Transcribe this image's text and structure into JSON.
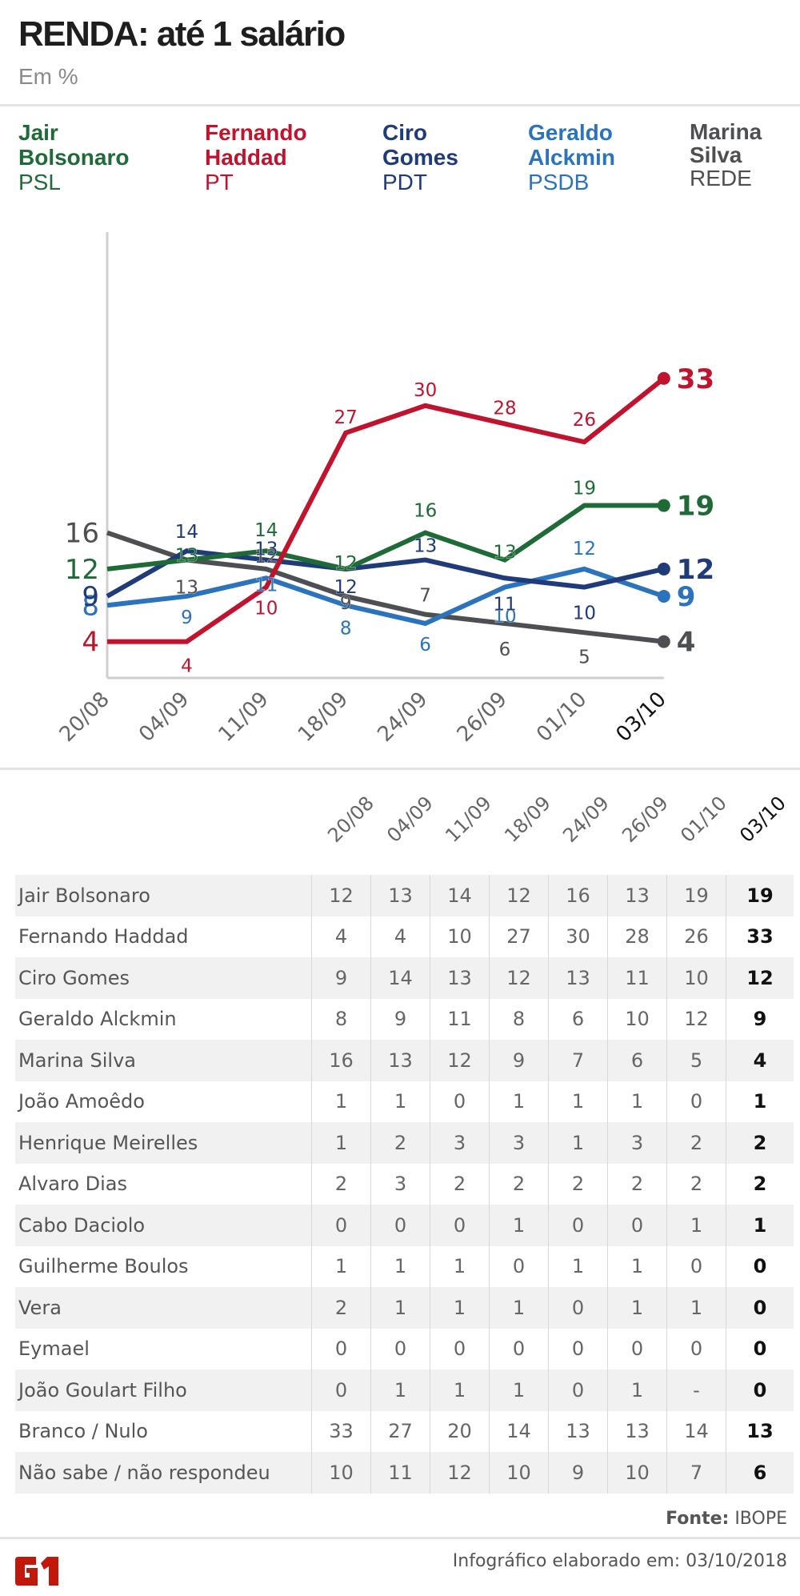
{
  "header": {
    "title": "RENDA: até 1 salário",
    "subtitle": "Em %"
  },
  "legend": [
    {
      "name": "Jair\nBolsonaro",
      "party": "PSL",
      "color": "#1e6b37"
    },
    {
      "name": "Fernando\nHaddad",
      "party": "PT",
      "color": "#c0132d"
    },
    {
      "name": "Ciro\nGomes",
      "party": "PDT",
      "color": "#203b7a"
    },
    {
      "name": "Geraldo\nAlckmin",
      "party": "PSDB",
      "color": "#2b73bd"
    },
    {
      "name": "Marina\nSilva",
      "party": "REDE",
      "color": "#4d4f52"
    }
  ],
  "chart_data": {
    "type": "line",
    "title": "RENDA: até 1 salário",
    "subtitle": "Em %",
    "xlabel": "",
    "ylabel": "",
    "ylim": [
      0,
      34
    ],
    "grid": false,
    "legend_position": "top",
    "x": [
      "20/08",
      "04/09",
      "11/09",
      "18/09",
      "24/09",
      "26/09",
      "01/10",
      "03/10"
    ],
    "series": [
      {
        "name": "Jair Bolsonaro",
        "party": "PSL",
        "color": "#1e6b37",
        "values": [
          12,
          13,
          14,
          12,
          16,
          13,
          19,
          19
        ]
      },
      {
        "name": "Fernando Haddad",
        "party": "PT",
        "color": "#c0132d",
        "values": [
          4,
          4,
          10,
          27,
          30,
          28,
          26,
          33
        ]
      },
      {
        "name": "Ciro Gomes",
        "party": "PDT",
        "color": "#203b7a",
        "values": [
          9,
          14,
          13,
          12,
          13,
          11,
          10,
          12
        ]
      },
      {
        "name": "Geraldo Alckmin",
        "party": "PSDB",
        "color": "#2b73bd",
        "values": [
          8,
          9,
          11,
          8,
          6,
          10,
          12,
          9
        ]
      },
      {
        "name": "Marina Silva",
        "party": "REDE",
        "color": "#4d4f52",
        "values": [
          16,
          13,
          12,
          9,
          7,
          6,
          5,
          4
        ]
      }
    ]
  },
  "table": {
    "columns": [
      "20/08",
      "04/09",
      "11/09",
      "18/09",
      "24/09",
      "26/09",
      "01/10",
      "03/10"
    ],
    "rows": [
      {
        "name": "Jair Bolsonaro",
        "values": [
          "12",
          "13",
          "14",
          "12",
          "16",
          "13",
          "19",
          "19"
        ]
      },
      {
        "name": "Fernando Haddad",
        "values": [
          "4",
          "4",
          "10",
          "27",
          "30",
          "28",
          "26",
          "33"
        ]
      },
      {
        "name": "Ciro Gomes",
        "values": [
          "9",
          "14",
          "13",
          "12",
          "13",
          "11",
          "10",
          "12"
        ]
      },
      {
        "name": "Geraldo Alckmin",
        "values": [
          "8",
          "9",
          "11",
          "8",
          "6",
          "10",
          "12",
          "9"
        ]
      },
      {
        "name": "Marina Silva",
        "values": [
          "16",
          "13",
          "12",
          "9",
          "7",
          "6",
          "5",
          "4"
        ]
      },
      {
        "name": "João Amoêdo",
        "values": [
          "1",
          "1",
          "0",
          "1",
          "1",
          "1",
          "0",
          "1"
        ]
      },
      {
        "name": "Henrique Meirelles",
        "values": [
          "1",
          "2",
          "3",
          "3",
          "1",
          "3",
          "2",
          "2"
        ]
      },
      {
        "name": "Alvaro Dias",
        "values": [
          "2",
          "3",
          "2",
          "2",
          "2",
          "2",
          "2",
          "2"
        ]
      },
      {
        "name": "Cabo Daciolo",
        "values": [
          "0",
          "0",
          "0",
          "1",
          "0",
          "0",
          "1",
          "1"
        ]
      },
      {
        "name": "Guilherme Boulos",
        "values": [
          "1",
          "1",
          "1",
          "0",
          "1",
          "1",
          "0",
          "0"
        ]
      },
      {
        "name": "Vera",
        "values": [
          "2",
          "1",
          "1",
          "1",
          "0",
          "1",
          "1",
          "0"
        ]
      },
      {
        "name": "Eymael",
        "values": [
          "0",
          "0",
          "0",
          "0",
          "0",
          "0",
          "0",
          "0"
        ]
      },
      {
        "name": "João Goulart Filho",
        "values": [
          "0",
          "1",
          "1",
          "1",
          "0",
          "1",
          "-",
          "0"
        ]
      },
      {
        "name": "Branco / Nulo",
        "values": [
          "33",
          "27",
          "20",
          "14",
          "13",
          "13",
          "14",
          "13"
        ]
      },
      {
        "name": "Não sabe / não respondeu",
        "values": [
          "10",
          "11",
          "12",
          "10",
          "9",
          "10",
          "7",
          "6"
        ]
      }
    ]
  },
  "footer": {
    "source_label": "Fonte:",
    "source_value": "IBOPE",
    "credit": "Infográfico elaborado em: 03/10/2018",
    "logo": "G1",
    "logo_color": "#c4170c"
  }
}
